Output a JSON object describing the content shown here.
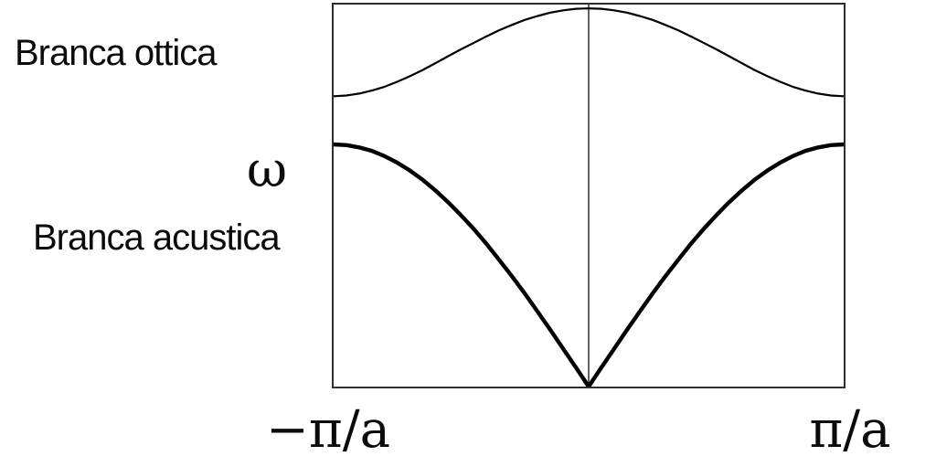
{
  "figure": {
    "colors": {
      "curve": "#000000",
      "frame": "#2e2e2e",
      "center_line": "#3c3c3c",
      "background": "#ffffff",
      "text": "#0b0b0b"
    }
  },
  "chart_data": {
    "type": "line",
    "title": "",
    "xlabel": "",
    "ylabel": "ω",
    "x_range": [
      -1,
      1
    ],
    "y_range": [
      0,
      1
    ],
    "grid": false,
    "legend_position": "none",
    "frame": "box",
    "center_axis_line": true,
    "x_ticks": [
      {
        "value": -1,
        "label": "−π/a"
      },
      {
        "value": 1,
        "label": "π/a"
      }
    ],
    "annotations": [
      {
        "text": "Branca ottica",
        "target": "optical-branch",
        "position": "left-top"
      },
      {
        "text": "Branca acustica",
        "target": "acoustic-branch",
        "position": "left-middle"
      }
    ],
    "x": [
      -1,
      -0.95,
      -0.9,
      -0.85,
      -0.8,
      -0.75,
      -0.7,
      -0.65,
      -0.6,
      -0.55,
      -0.5,
      -0.45,
      -0.4,
      -0.35,
      -0.3,
      -0.25,
      -0.2,
      -0.15,
      -0.1,
      -0.05,
      0,
      0.05,
      0.1,
      0.15,
      0.2,
      0.25,
      0.3,
      0.35,
      0.4,
      0.45,
      0.5,
      0.55,
      0.6,
      0.65,
      0.7,
      0.75,
      0.8,
      0.85,
      0.9,
      0.95,
      1
    ],
    "series": [
      {
        "name": "Branca ottica",
        "id": "optical-branch-curve",
        "line_width": 2.2,
        "values": [
          0.76,
          0.762,
          0.767,
          0.775,
          0.785,
          0.798,
          0.813,
          0.829,
          0.847,
          0.865,
          0.883,
          0.9,
          0.917,
          0.933,
          0.947,
          0.96,
          0.97,
          0.979,
          0.985,
          0.989,
          0.99,
          0.989,
          0.985,
          0.979,
          0.97,
          0.96,
          0.947,
          0.933,
          0.917,
          0.9,
          0.883,
          0.865,
          0.847,
          0.829,
          0.813,
          0.798,
          0.785,
          0.775,
          0.767,
          0.762,
          0.76
        ]
      },
      {
        "name": "Branca acustica",
        "id": "acoustic-branch-curve",
        "line_width": 4.4,
        "values": [
          0.634,
          0.632,
          0.626,
          0.617,
          0.603,
          0.586,
          0.565,
          0.541,
          0.513,
          0.482,
          0.448,
          0.412,
          0.373,
          0.331,
          0.288,
          0.243,
          0.196,
          0.148,
          0.099,
          0.05,
          0.0,
          0.05,
          0.099,
          0.148,
          0.196,
          0.243,
          0.288,
          0.331,
          0.373,
          0.412,
          0.448,
          0.482,
          0.513,
          0.541,
          0.565,
          0.586,
          0.603,
          0.617,
          0.626,
          0.632,
          0.634
        ]
      }
    ]
  }
}
